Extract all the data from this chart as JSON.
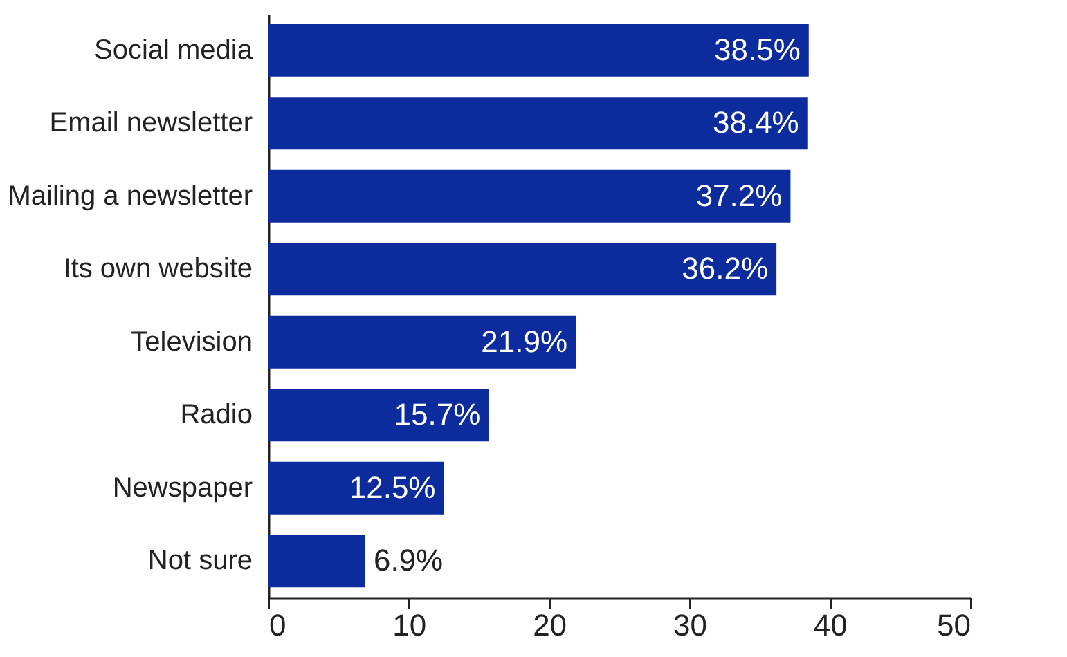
{
  "chart_data": {
    "type": "bar",
    "orientation": "horizontal",
    "categories": [
      "Social media",
      "Email newsletter",
      "Mailing a newsletter",
      "Its own website",
      "Television",
      "Radio",
      "Newspaper",
      "Not sure"
    ],
    "values": [
      38.5,
      38.4,
      37.2,
      36.2,
      21.9,
      15.7,
      12.5,
      6.9
    ],
    "value_labels": [
      "38.5%",
      "38.4%",
      "37.2%",
      "36.2%",
      "21.9%",
      "15.7%",
      "12.5%",
      "6.9%"
    ],
    "color": "#0c2b9c",
    "xlim": [
      0,
      50
    ],
    "xticks": [
      0,
      10,
      20,
      30,
      40,
      50
    ],
    "grid": false
  }
}
